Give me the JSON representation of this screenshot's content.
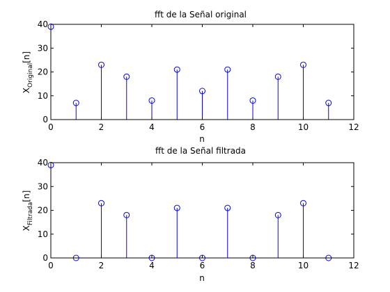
{
  "chart_data": [
    {
      "type": "stem",
      "title": "fft de la Señal original",
      "xlabel": "n",
      "ylabel": {
        "main": "X",
        "sub": "Original",
        "suffix": "[n]"
      },
      "xlim": [
        0,
        12
      ],
      "ylim": [
        0,
        40
      ],
      "xticks": [
        "0",
        "2",
        "4",
        "6",
        "8",
        "10",
        "12"
      ],
      "yticks": [
        "0",
        "10",
        "20",
        "30",
        "40"
      ],
      "grid": false,
      "x": [
        0,
        1,
        2,
        3,
        4,
        5,
        6,
        7,
        8,
        9,
        10,
        11
      ],
      "values": [
        39,
        7,
        23,
        18,
        8,
        21,
        12,
        21,
        8,
        18,
        23,
        7
      ],
      "color": "#0000ff"
    },
    {
      "type": "stem",
      "title": "fft de la Señal filtrada",
      "xlabel": "n",
      "ylabel": {
        "main": "X",
        "sub": "Filtrada",
        "suffix": "[n]"
      },
      "xlim": [
        0,
        12
      ],
      "ylim": [
        0,
        40
      ],
      "xticks": [
        "0",
        "2",
        "4",
        "6",
        "8",
        "10",
        "12"
      ],
      "yticks": [
        "0",
        "10",
        "20",
        "30",
        "40"
      ],
      "grid": false,
      "x": [
        0,
        1,
        2,
        3,
        4,
        5,
        6,
        7,
        8,
        9,
        10,
        11
      ],
      "values": [
        39,
        0,
        23,
        18,
        0,
        21,
        0,
        21,
        0,
        18,
        23,
        0
      ],
      "color": "#0000ff"
    }
  ]
}
